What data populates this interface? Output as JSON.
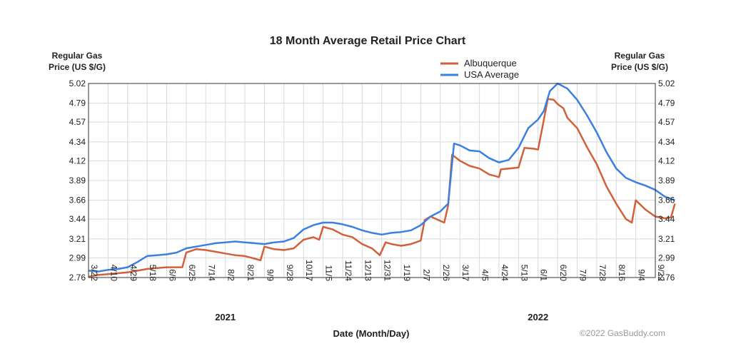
{
  "chart_data": {
    "type": "line",
    "title": "18 Month Average Retail Price Chart",
    "ylabel_left": [
      "Regular Gas",
      "Price (US $/G)"
    ],
    "ylabel_right": [
      "Regular Gas",
      "Price (US $/G)"
    ],
    "xlabel": "Date (Month/Day)",
    "ylim": [
      2.76,
      5.02
    ],
    "yticks": [
      "5.02",
      "4.79",
      "4.57",
      "4.34",
      "4.12",
      "3.89",
      "3.66",
      "3.44",
      "3.21",
      "2.99",
      "2.76"
    ],
    "xticks": [
      "3/22",
      "4/10",
      "4/29",
      "5/18",
      "6/6",
      "6/25",
      "7/14",
      "8/2",
      "8/21",
      "9/9",
      "9/28",
      "10/17",
      "11/5",
      "11/24",
      "12/13",
      "12/31",
      "1/19",
      "2/7",
      "2/26",
      "3/17",
      "4/5",
      "4/24",
      "5/13",
      "6/1",
      "6/20",
      "7/9",
      "7/28",
      "8/16",
      "9/4",
      "9/22"
    ],
    "year_labels": [
      {
        "label": "2021",
        "at_tick": 7
      },
      {
        "label": "2022",
        "at_tick": 23
      }
    ],
    "grid": true,
    "legend_position": "top-right",
    "series": [
      {
        "name": "Albuquerque",
        "color": "#d0613b",
        "points": [
          [
            0,
            2.77
          ],
          [
            0.5,
            2.79
          ],
          [
            1,
            2.8
          ],
          [
            1.5,
            2.81
          ],
          [
            2,
            2.82
          ],
          [
            2.5,
            2.84
          ],
          [
            3,
            2.86
          ],
          [
            3.5,
            2.87
          ],
          [
            4,
            2.88
          ],
          [
            4.5,
            2.88
          ],
          [
            4.8,
            2.88
          ],
          [
            5,
            3.05
          ],
          [
            5.5,
            3.09
          ],
          [
            6,
            3.08
          ],
          [
            6.5,
            3.06
          ],
          [
            7,
            3.04
          ],
          [
            7.5,
            3.02
          ],
          [
            8,
            3.01
          ],
          [
            8.5,
            2.98
          ],
          [
            8.8,
            2.96
          ],
          [
            9,
            3.12
          ],
          [
            9.5,
            3.09
          ],
          [
            10,
            3.08
          ],
          [
            10.5,
            3.1
          ],
          [
            11,
            3.2
          ],
          [
            11.5,
            3.23
          ],
          [
            11.8,
            3.2
          ],
          [
            12,
            3.35
          ],
          [
            12.5,
            3.32
          ],
          [
            13,
            3.26
          ],
          [
            13.5,
            3.23
          ],
          [
            14,
            3.15
          ],
          [
            14.5,
            3.1
          ],
          [
            14.9,
            3.02
          ],
          [
            15.2,
            3.17
          ],
          [
            15.5,
            3.15
          ],
          [
            16,
            3.13
          ],
          [
            16.5,
            3.15
          ],
          [
            17,
            3.19
          ],
          [
            17.2,
            3.43
          ],
          [
            17.5,
            3.47
          ],
          [
            18,
            3.42
          ],
          [
            18.2,
            3.4
          ],
          [
            18.4,
            3.6
          ],
          [
            18.6,
            4.19
          ],
          [
            19,
            4.12
          ],
          [
            19.5,
            4.06
          ],
          [
            20,
            4.03
          ],
          [
            20.5,
            3.96
          ],
          [
            21,
            3.93
          ],
          [
            21.1,
            4.02
          ],
          [
            21.5,
            4.03
          ],
          [
            22,
            4.04
          ],
          [
            22.3,
            4.27
          ],
          [
            22.8,
            4.26
          ],
          [
            23,
            4.25
          ],
          [
            23.3,
            4.6
          ],
          [
            23.5,
            4.84
          ],
          [
            23.8,
            4.83
          ],
          [
            24,
            4.78
          ],
          [
            24.3,
            4.73
          ],
          [
            24.5,
            4.62
          ],
          [
            25,
            4.5
          ],
          [
            25.5,
            4.28
          ],
          [
            26,
            4.08
          ],
          [
            26.5,
            3.82
          ],
          [
            27,
            3.62
          ],
          [
            27.5,
            3.44
          ],
          [
            27.8,
            3.4
          ],
          [
            28,
            3.66
          ],
          [
            28.5,
            3.55
          ],
          [
            29,
            3.47
          ],
          [
            29.5,
            3.45
          ],
          [
            29.8,
            3.46
          ],
          [
            30,
            3.62
          ]
        ]
      },
      {
        "name": "USA Average",
        "color": "#3b7fe0",
        "points": [
          [
            0,
            2.84
          ],
          [
            0.5,
            2.83
          ],
          [
            1,
            2.85
          ],
          [
            1.5,
            2.86
          ],
          [
            2,
            2.88
          ],
          [
            2.5,
            2.94
          ],
          [
            3,
            3.01
          ],
          [
            3.5,
            3.02
          ],
          [
            4,
            3.03
          ],
          [
            4.5,
            3.05
          ],
          [
            5,
            3.1
          ],
          [
            5.5,
            3.12
          ],
          [
            6,
            3.14
          ],
          [
            6.5,
            3.16
          ],
          [
            7,
            3.17
          ],
          [
            7.5,
            3.18
          ],
          [
            8,
            3.17
          ],
          [
            8.5,
            3.16
          ],
          [
            9,
            3.15
          ],
          [
            9.5,
            3.17
          ],
          [
            10,
            3.18
          ],
          [
            10.5,
            3.22
          ],
          [
            11,
            3.32
          ],
          [
            11.5,
            3.37
          ],
          [
            12,
            3.4
          ],
          [
            12.5,
            3.4
          ],
          [
            13,
            3.38
          ],
          [
            13.5,
            3.35
          ],
          [
            14,
            3.31
          ],
          [
            14.5,
            3.28
          ],
          [
            15,
            3.26
          ],
          [
            15.5,
            3.28
          ],
          [
            16,
            3.29
          ],
          [
            16.5,
            3.31
          ],
          [
            17,
            3.37
          ],
          [
            17.5,
            3.47
          ],
          [
            18,
            3.53
          ],
          [
            18.4,
            3.62
          ],
          [
            18.7,
            4.32
          ],
          [
            19,
            4.3
          ],
          [
            19.5,
            4.24
          ],
          [
            20,
            4.23
          ],
          [
            20.5,
            4.15
          ],
          [
            21,
            4.1
          ],
          [
            21.5,
            4.13
          ],
          [
            22,
            4.27
          ],
          [
            22.5,
            4.5
          ],
          [
            23,
            4.6
          ],
          [
            23.3,
            4.7
          ],
          [
            23.6,
            4.93
          ],
          [
            24,
            5.02
          ],
          [
            24.5,
            4.96
          ],
          [
            25,
            4.83
          ],
          [
            25.5,
            4.65
          ],
          [
            26,
            4.45
          ],
          [
            26.5,
            4.22
          ],
          [
            27,
            4.03
          ],
          [
            27.5,
            3.92
          ],
          [
            28,
            3.87
          ],
          [
            28.5,
            3.83
          ],
          [
            29,
            3.78
          ],
          [
            29.5,
            3.7
          ],
          [
            30,
            3.66
          ]
        ]
      }
    ]
  },
  "copyright": "©2022 GasBuddy.com"
}
